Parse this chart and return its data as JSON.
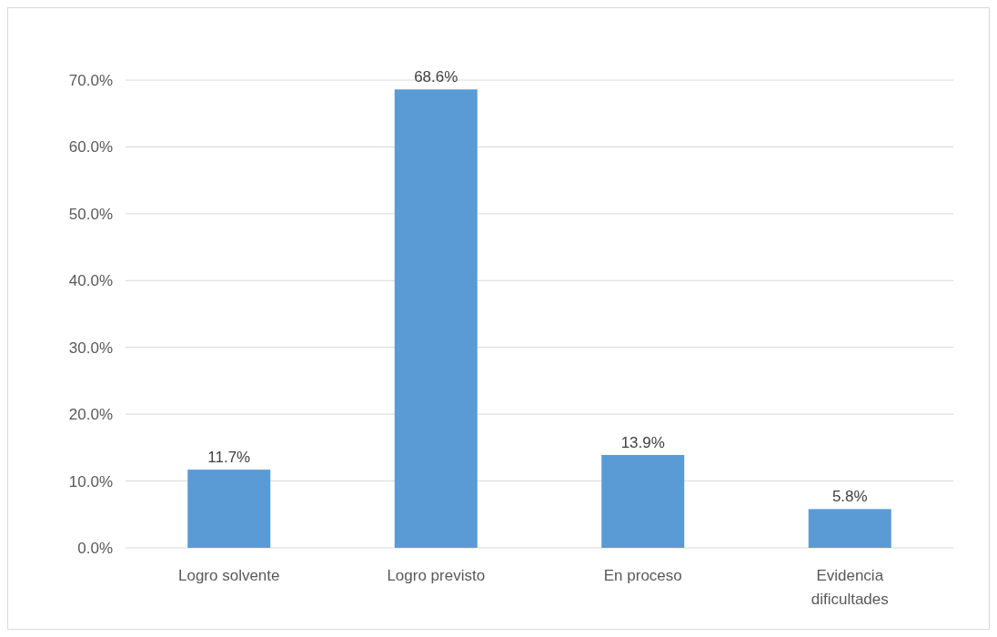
{
  "chart_data": {
    "type": "bar",
    "categories": [
      "Logro solvente",
      "Logro previsto",
      "En proceso",
      "Evidencia dificultades"
    ],
    "values": [
      11.7,
      68.6,
      13.9,
      5.8
    ],
    "value_labels": [
      "11.7%",
      "68.6%",
      "13.9%",
      "5.8%"
    ],
    "color": "#5b9bd5",
    "ylim": [
      0,
      70
    ],
    "yticks": [
      {
        "value": 0,
        "label": "0.0%"
      },
      {
        "value": 10,
        "label": "10.0%"
      },
      {
        "value": 20,
        "label": "20.0%"
      },
      {
        "value": 30,
        "label": "30.0%"
      },
      {
        "value": 40,
        "label": "40.0%"
      },
      {
        "value": 50,
        "label": "50.0%"
      },
      {
        "value": 60,
        "label": "60.0%"
      },
      {
        "value": 70,
        "label": "70.0%"
      }
    ],
    "grid": true
  }
}
